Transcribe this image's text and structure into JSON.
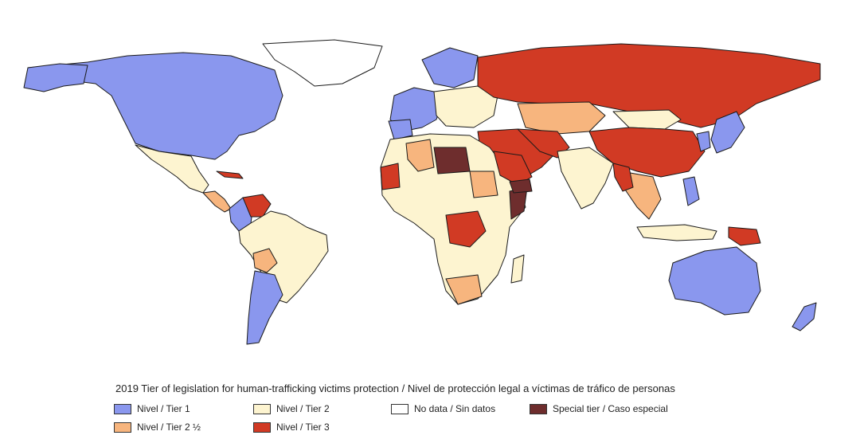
{
  "caption": "2019 Tier of legislation for human-trafficking victims protection / Nivel de protección legal a víctimas de tráfico de personas",
  "legend": {
    "items": [
      {
        "label": "Nivel / Tier 1",
        "color": "#8a97ee"
      },
      {
        "label": "Nivel / Tier 2",
        "color": "#fdf4d0"
      },
      {
        "label": "No data / Sin datos",
        "color": "#ffffff"
      },
      {
        "label": "Special tier / Caso especial",
        "color": "#6e2d2d"
      },
      {
        "label": "Nivel / Tier 2 ½",
        "color": "#f7b57e"
      },
      {
        "label": "Nivel / Tier 3",
        "color": "#d13a24"
      }
    ]
  },
  "colors": {
    "tier1": "#8a97ee",
    "tier2": "#fdf4d0",
    "tier2half": "#f7b57e",
    "tier3": "#d13a24",
    "special": "#6e2d2d",
    "nodata": "#ffffff"
  }
}
